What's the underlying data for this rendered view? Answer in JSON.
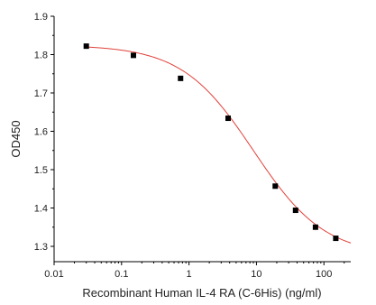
{
  "chart_data": {
    "type": "scatter",
    "title": "",
    "xlabel": "Recombinant Human IL-4 RA (C-6His) (ng/ml)",
    "ylabel": "OD450",
    "x_scale": "log",
    "xlim": [
      0.01,
      250
    ],
    "ylim": [
      1.26,
      1.9
    ],
    "x_ticks": [
      0.01,
      0.1,
      1,
      10,
      100
    ],
    "x_tick_labels": [
      "0.01",
      "0.1",
      "1",
      "10",
      "100"
    ],
    "y_ticks": [
      1.3,
      1.4,
      1.5,
      1.6,
      1.7,
      1.8,
      1.9
    ],
    "y_tick_labels": [
      "1.3",
      "1.4",
      "1.5",
      "1.6",
      "1.7",
      "1.8",
      "1.9"
    ],
    "grid": false,
    "legend": "none",
    "series": [
      {
        "x": [
          0.03,
          0.15,
          0.75,
          3.8,
          19,
          38,
          75,
          150
        ],
        "y": [
          1.822,
          1.798,
          1.738,
          1.634,
          1.457,
          1.394,
          1.35,
          1.321
        ],
        "marker": "square",
        "color": "#000000"
      }
    ],
    "fit_curve": {
      "type": "4PL",
      "top": 1.825,
      "bottom": 1.275,
      "ec50": 9,
      "hill": 0.82,
      "color": "#e0413a"
    }
  }
}
